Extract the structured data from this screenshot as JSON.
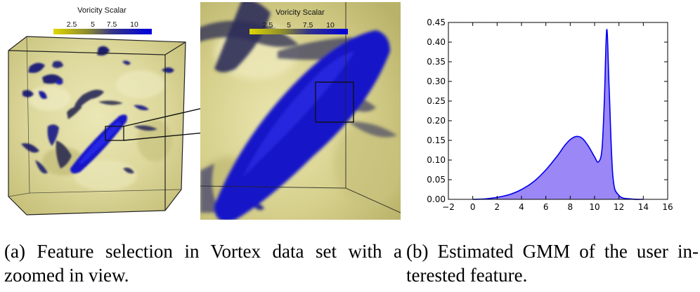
{
  "figure_a": {
    "colorbar_title": "Voricity Scalar",
    "colorbar_ticks": [
      "2.5",
      "5",
      "7.5",
      "10"
    ],
    "zoom_colorbar_title": "Voricity Scalar",
    "zoom_colorbar_ticks": [
      "2.5",
      "5",
      "7.5",
      "10"
    ]
  },
  "captions": {
    "a_line1": "(a) Feature selection in Vortex data set with a",
    "a_line2": "zoomed in view.",
    "b_line1": "(b) Estimated GMM of the user in-",
    "b_line2": "terested feature."
  },
  "colors": {
    "feature": "#1f1fd0",
    "fill": "#9b87f5",
    "line": "#0000ee",
    "yellow": "#d6d28a"
  },
  "chart_data": {
    "type": "area",
    "xlim": [
      -2,
      16
    ],
    "ylim": [
      0,
      0.45
    ],
    "x_ticks": [
      "−2",
      "0",
      "2",
      "4",
      "6",
      "8",
      "10",
      "12",
      "14",
      "16"
    ],
    "y_ticks": [
      "0.00",
      "0.05",
      "0.10",
      "0.15",
      "0.20",
      "0.25",
      "0.30",
      "0.35",
      "0.40",
      "0.45"
    ],
    "x": [
      0,
      1,
      2,
      3,
      4,
      5,
      6,
      7,
      7.5,
      8,
      8.5,
      9,
      9.5,
      10,
      10.3,
      10.6,
      10.8,
      11,
      11.2,
      11.5,
      12,
      13,
      14
    ],
    "y": [
      0,
      0.001,
      0.005,
      0.012,
      0.025,
      0.045,
      0.075,
      0.113,
      0.135,
      0.152,
      0.16,
      0.155,
      0.135,
      0.108,
      0.095,
      0.125,
      0.25,
      0.432,
      0.28,
      0.06,
      0.01,
      0.001,
      0
    ]
  }
}
